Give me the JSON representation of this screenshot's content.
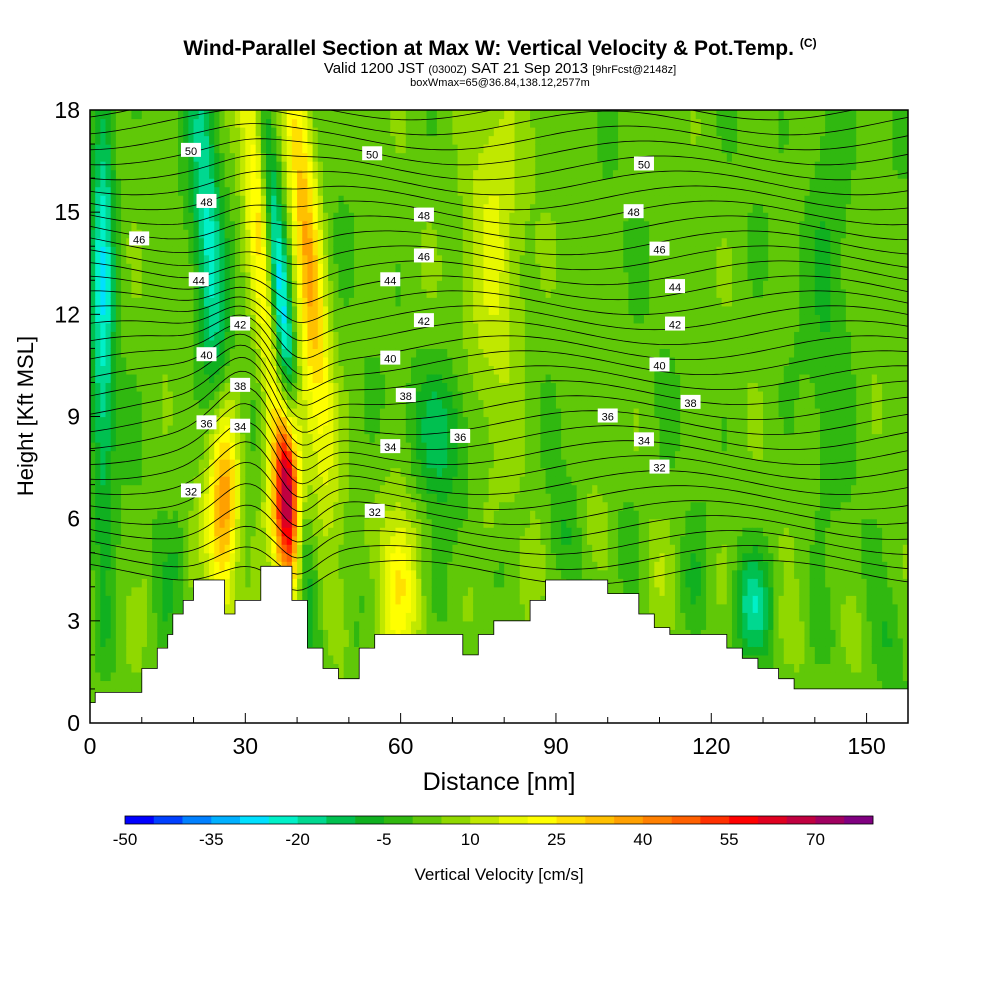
{
  "title": {
    "line1": "Wind-Parallel Section at Max W: Vertical Velocity & Pot.Temp.",
    "copyright": "(C)",
    "line2_main": "Valid 1200 JST",
    "line2_utc": "(0300Z)",
    "line2_date": "SAT 21 Sep 2013",
    "line2_fcst": "[9hrFcst@2148z]",
    "line3": "boxWmax=65@36.84,138.12,2577m"
  },
  "chart_data": {
    "type": "heatmap",
    "xlabel": "Distance [nm]",
    "ylabel": "Height [Kft MSL]",
    "xlim": [
      0,
      158
    ],
    "ylim": [
      0,
      18
    ],
    "xticks": [
      0,
      30,
      60,
      90,
      120,
      150
    ],
    "yticks": [
      0,
      3,
      6,
      9,
      12,
      15,
      18
    ],
    "colorbar": {
      "label": "Vertical Velocity [cm/s]",
      "tick_labels": [
        "-50",
        "-35",
        "-20",
        "-5",
        "10",
        "25",
        "40",
        "55",
        "70"
      ],
      "tick_values": [
        -50,
        -35,
        -20,
        -5,
        10,
        25,
        40,
        55,
        70
      ],
      "min": -50,
      "max": 80,
      "step": 5,
      "colors": [
        "#0000ff",
        "#0040ff",
        "#0080ff",
        "#00b0ff",
        "#00e0ff",
        "#00f0c8",
        "#00d890",
        "#00c050",
        "#10b020",
        "#30b810",
        "#60c808",
        "#90d800",
        "#c0e800",
        "#e8f800",
        "#ffff00",
        "#ffe000",
        "#ffc000",
        "#ffa000",
        "#ff8000",
        "#ff6000",
        "#ff3000",
        "#ff0000",
        "#e00020",
        "#c00040",
        "#a00060",
        "#800080"
      ]
    },
    "terrain_kft": [
      [
        0,
        0.6
      ],
      [
        1,
        0.6
      ],
      [
        1,
        0.9
      ],
      [
        10,
        0.9
      ],
      [
        10,
        1.6
      ],
      [
        13,
        1.6
      ],
      [
        13,
        2.2
      ],
      [
        15,
        2.2
      ],
      [
        15,
        2.6
      ],
      [
        16,
        2.6
      ],
      [
        16,
        3.2
      ],
      [
        18,
        3.2
      ],
      [
        18,
        3.6
      ],
      [
        20,
        3.6
      ],
      [
        20,
        4.2
      ],
      [
        26,
        4.2
      ],
      [
        26,
        3.2
      ],
      [
        28,
        3.2
      ],
      [
        28,
        3.6
      ],
      [
        33,
        3.6
      ],
      [
        33,
        4.6
      ],
      [
        39,
        4.6
      ],
      [
        39,
        3.6
      ],
      [
        42,
        3.6
      ],
      [
        42,
        2.2
      ],
      [
        45,
        2.2
      ],
      [
        45,
        1.6
      ],
      [
        48,
        1.6
      ],
      [
        48,
        1.3
      ],
      [
        52,
        1.3
      ],
      [
        52,
        2.2
      ],
      [
        55,
        2.2
      ],
      [
        55,
        2.6
      ],
      [
        72,
        2.6
      ],
      [
        72,
        2.0
      ],
      [
        75,
        2.0
      ],
      [
        75,
        2.6
      ],
      [
        78,
        2.6
      ],
      [
        78,
        3.0
      ],
      [
        85,
        3.0
      ],
      [
        85,
        3.6
      ],
      [
        88,
        3.6
      ],
      [
        88,
        4.2
      ],
      [
        100,
        4.2
      ],
      [
        100,
        3.8
      ],
      [
        106,
        3.8
      ],
      [
        106,
        3.2
      ],
      [
        109,
        3.2
      ],
      [
        109,
        2.8
      ],
      [
        112,
        2.8
      ],
      [
        112,
        2.6
      ],
      [
        123,
        2.6
      ],
      [
        123,
        2.2
      ],
      [
        126,
        2.2
      ],
      [
        126,
        1.9
      ],
      [
        129,
        1.9
      ],
      [
        129,
        1.6
      ],
      [
        133,
        1.6
      ],
      [
        133,
        1.3
      ],
      [
        136,
        1.3
      ],
      [
        136,
        1.0
      ],
      [
        158,
        1.0
      ]
    ],
    "updrafts": [
      {
        "x": 26,
        "y": 6.5,
        "sx": 2.0,
        "sy": 2.2,
        "w": 42,
        "tilt": 0
      },
      {
        "x": 38.5,
        "y": 6.8,
        "sx": 2.0,
        "sy": 2.0,
        "w": 75,
        "tilt": 0
      },
      {
        "x": 42,
        "y": 14,
        "sx": 2.0,
        "sy": 5.0,
        "w": 32,
        "tilt": -0.5
      },
      {
        "x": 33,
        "y": 15,
        "sx": 2.0,
        "sy": 5.0,
        "w": 28,
        "tilt": -0.5
      },
      {
        "x": 60,
        "y": 4.0,
        "sx": 3.0,
        "sy": 2.0,
        "w": 20,
        "tilt": 0
      },
      {
        "x": 78,
        "y": 14,
        "sx": 4.0,
        "sy": 4.0,
        "w": 15,
        "tilt": -0.2
      }
    ],
    "downdrafts": [
      {
        "x": 23,
        "y": 14,
        "sx": 2.0,
        "sy": 4.5,
        "w": -22,
        "tilt": -0.4
      },
      {
        "x": 37,
        "y": 12,
        "sx": 1.5,
        "sy": 5.0,
        "w": -40,
        "tilt": -0.6
      },
      {
        "x": 2.5,
        "y": 13,
        "sx": 1.6,
        "sy": 5.0,
        "w": -25,
        "tilt": 0
      },
      {
        "x": 68,
        "y": 8.5,
        "sx": 4.0,
        "sy": 1.5,
        "w": -15,
        "tilt": 0
      },
      {
        "x": 128,
        "y": 3.5,
        "sx": 3.0,
        "sy": 1.0,
        "w": -15,
        "tilt": 0
      },
      {
        "x": 143,
        "y": 14,
        "sx": 3.0,
        "sy": 4.0,
        "w": -8,
        "tilt": 0
      }
    ],
    "theta_labels": [
      {
        "text": "50",
        "x": 19.5,
        "y": 16.8
      },
      {
        "text": "50",
        "x": 54.5,
        "y": 16.7
      },
      {
        "text": "50",
        "x": 107,
        "y": 16.4
      },
      {
        "text": "48",
        "x": 22.5,
        "y": 15.3
      },
      {
        "text": "48",
        "x": 64.5,
        "y": 14.9
      },
      {
        "text": "48",
        "x": 105,
        "y": 15.0
      },
      {
        "text": "46",
        "x": 9.5,
        "y": 14.2
      },
      {
        "text": "46",
        "x": 64.5,
        "y": 13.7
      },
      {
        "text": "46",
        "x": 110,
        "y": 13.9
      },
      {
        "text": "44",
        "x": 21,
        "y": 13.0
      },
      {
        "text": "44",
        "x": 58,
        "y": 13.0
      },
      {
        "text": "44",
        "x": 113,
        "y": 12.8
      },
      {
        "text": "42",
        "x": 29,
        "y": 11.7
      },
      {
        "text": "42",
        "x": 64.5,
        "y": 11.8
      },
      {
        "text": "42",
        "x": 113,
        "y": 11.7
      },
      {
        "text": "40",
        "x": 22.5,
        "y": 10.8
      },
      {
        "text": "40",
        "x": 58,
        "y": 10.7
      },
      {
        "text": "40",
        "x": 110,
        "y": 10.5
      },
      {
        "text": "38",
        "x": 29,
        "y": 9.9
      },
      {
        "text": "38",
        "x": 61,
        "y": 9.6
      },
      {
        "text": "38",
        "x": 116,
        "y": 9.4
      },
      {
        "text": "36",
        "x": 22.5,
        "y": 8.8
      },
      {
        "text": "36",
        "x": 71.5,
        "y": 8.4
      },
      {
        "text": "36",
        "x": 100,
        "y": 9.0
      },
      {
        "text": "34",
        "x": 29,
        "y": 8.7
      },
      {
        "text": "34",
        "x": 58,
        "y": 8.1
      },
      {
        "text": "34",
        "x": 107,
        "y": 8.3
      },
      {
        "text": "32",
        "x": 19.5,
        "y": 6.8
      },
      {
        "text": "32",
        "x": 55,
        "y": 6.2
      },
      {
        "text": "32",
        "x": 110,
        "y": 7.5
      }
    ]
  }
}
